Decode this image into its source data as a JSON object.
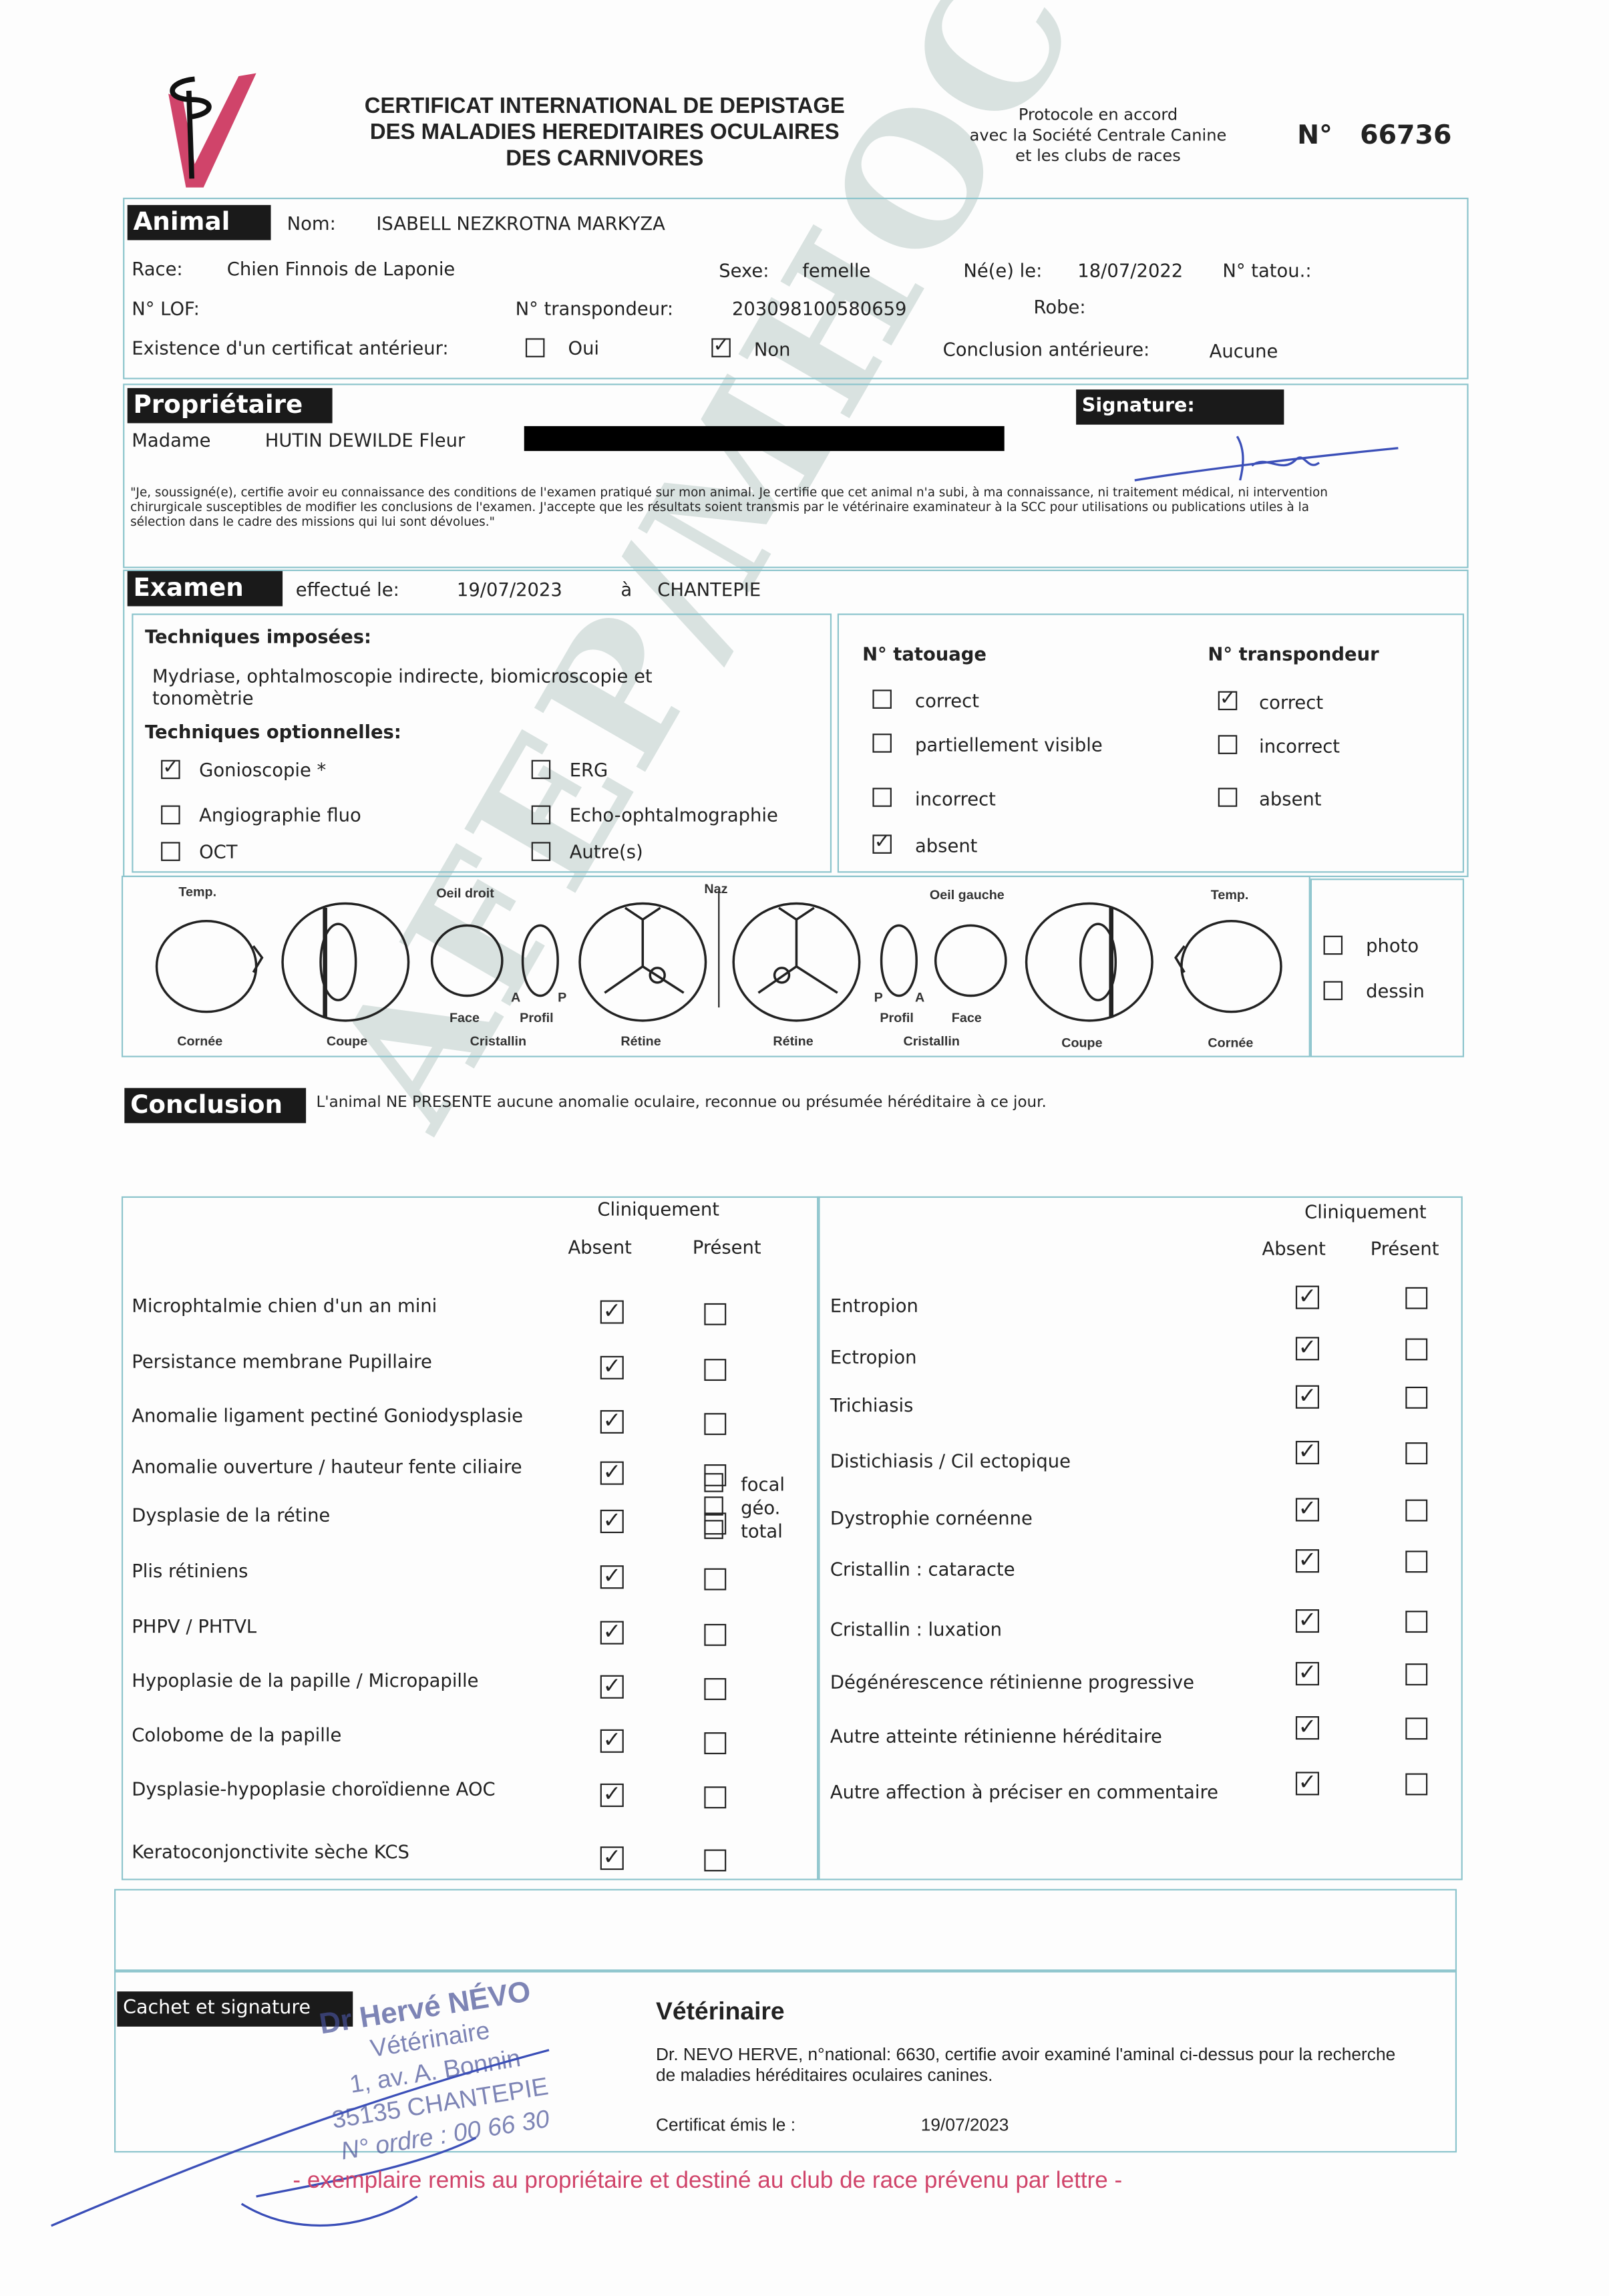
{
  "header": {
    "title_lines": [
      "CERTIFICAT INTERNATIONAL DE DEPISTAGE",
      "DES MALADIES HEREDITAIRES OCULAIRES",
      "DES CARNIVORES"
    ],
    "protocol_lines": [
      "Protocole en accord",
      "avec la Société Centrale Canine",
      "et les clubs de races"
    ],
    "number_label": "N°",
    "number": "66736",
    "watermark": "AFEP/MHOC",
    "brand_color": "#d0446a"
  },
  "animal": {
    "header": "Animal",
    "nom_label": "Nom:",
    "nom": "ISABELL NEZKROTNA MARKYZA",
    "race_label": "Race:",
    "race": "Chien Finnois de Laponie",
    "sexe_label": "Sexe:",
    "sexe": "femelle",
    "ne_label": "Né(e) le:",
    "ne": "18/07/2022",
    "tatou_label": "N° tatou.:",
    "lof_label": "N° LOF:",
    "transpondeur_label": "N° transpondeur:",
    "transpondeur": "203098100580659",
    "robe_label": "Robe:",
    "cert_ant_label": "Existence d'un certificat antérieur:",
    "oui": "Oui",
    "oui_checked": false,
    "non": "Non",
    "non_checked": true,
    "conclusion_ant_label": "Conclusion antérieure:",
    "conclusion_ant": "Aucune"
  },
  "proprietaire": {
    "header": "Propriétaire",
    "civilite": "Madame",
    "nom": "HUTIN DEWILDE Fleur",
    "signature_header": "Signature:",
    "declaration": "\"Je, soussigné(e), certifie avoir eu connaissance des conditions de l'examen pratiqué sur mon animal. Je certifie que cet animal n'a subi, à ma connaissance, ni traitement médical, ni intervention chirurgicale susceptibles de modifier les conclusions de l'examen. J'accepte que les résultats soient transmis par le vétérinaire examinateur à la SCC pour utilisations ou publications utiles à la sélection dans le cadre des missions qui lui sont dévolues.\""
  },
  "examen": {
    "header": "Examen",
    "effectue_label": "effectué le:",
    "date": "19/07/2023",
    "a": "à",
    "lieu": "CHANTEPIE",
    "imposees_title": "Techniques imposées:",
    "imposees": "Mydriase, ophtalmoscopie indirecte, biomicroscopie et tonomètrie",
    "optionnelles_title": "Techniques optionnelles:",
    "optionnelles": [
      {
        "label": "Gonioscopie *",
        "checked": true
      },
      {
        "label": "ERG",
        "checked": false
      },
      {
        "label": "Angiographie fluo",
        "checked": false
      },
      {
        "label": "Echo-ophtalmographie",
        "checked": false
      },
      {
        "label": "OCT",
        "checked": false
      },
      {
        "label": "Autre(s)",
        "checked": false
      }
    ],
    "tatouage_title": "N° tatouage",
    "tatouage": [
      {
        "label": "correct",
        "checked": false
      },
      {
        "label": "partiellement visible",
        "checked": false
      },
      {
        "label": "incorrect",
        "checked": false
      },
      {
        "label": "absent",
        "checked": true
      }
    ],
    "transpondeur_title": "N° transpondeur",
    "transpondeur": [
      {
        "label": "correct",
        "checked": true
      },
      {
        "label": "incorrect",
        "checked": false
      },
      {
        "label": "absent",
        "checked": false
      }
    ]
  },
  "diagram": {
    "temp": "Temp.",
    "oeil_droit": "Oeil droit",
    "naz": "Naz",
    "oeil_gauche": "Oeil gauche",
    "cornee": "Cornée",
    "coupe": "Coupe",
    "cristallin": "Cristallin",
    "retine": "Rétine",
    "face": "Face",
    "profil": "Profil",
    "A": "A",
    "P": "P",
    "photo": "photo",
    "photo_checked": false,
    "dessin": "dessin",
    "dessin_checked": false
  },
  "conclusion": {
    "header": "Conclusion",
    "text": "L'animal NE PRESENTE aucune anomalie oculaire, reconnue ou présumée héréditaire à ce jour."
  },
  "table": {
    "cliniquement": "Cliniquement",
    "absent": "Absent",
    "present": "Présent",
    "focal": "focal",
    "geo": "géo.",
    "total": "total",
    "left": [
      {
        "label": "Microphtalmie chien d'un an mini",
        "absent": true,
        "present": false
      },
      {
        "label": "Persistance membrane Pupillaire",
        "absent": true,
        "present": false
      },
      {
        "label": "Anomalie ligament pectiné Goniodysplasie",
        "absent": true,
        "present": false
      },
      {
        "label": "Anomalie ouverture / hauteur fente ciliaire",
        "absent": true,
        "present": false
      },
      {
        "label": "Dysplasie de la rétine",
        "absent": true,
        "present": false
      },
      {
        "label": "Plis rétiniens",
        "absent": true,
        "present": false
      },
      {
        "label": "PHPV / PHTVL",
        "absent": true,
        "present": false
      },
      {
        "label": "Hypoplasie de la papille / Micropapille",
        "absent": true,
        "present": false
      },
      {
        "label": "Colobome de la papille",
        "absent": true,
        "present": false
      },
      {
        "label": "Dysplasie-hypoplasie choroïdienne AOC",
        "absent": true,
        "present": false
      },
      {
        "label": "Keratoconjonctivite sèche KCS",
        "absent": true,
        "present": false
      }
    ],
    "right": [
      {
        "label": "Entropion",
        "absent": true,
        "present": false
      },
      {
        "label": "Ectropion",
        "absent": true,
        "present": false
      },
      {
        "label": "Trichiasis",
        "absent": true,
        "present": false
      },
      {
        "label": "Distichiasis / Cil ectopique",
        "absent": true,
        "present": false
      },
      {
        "label": "Dystrophie cornéenne",
        "absent": true,
        "present": false
      },
      {
        "label": "Cristallin : cataracte",
        "absent": true,
        "present": false
      },
      {
        "label": "Cristallin : luxation",
        "absent": true,
        "present": false
      },
      {
        "label": "Dégénérescence rétinienne progressive",
        "absent": true,
        "present": false
      },
      {
        "label": "Autre atteinte rétinienne héréditaire",
        "absent": true,
        "present": false
      },
      {
        "label": "Autre affection à préciser en commentaire",
        "absent": true,
        "present": false
      }
    ]
  },
  "veterinaire": {
    "cachet_header": "Cachet et signature",
    "stamp_lines": [
      "Dr Hervé NÉVO",
      "Vétérinaire",
      "1, av. A. Bonnin",
      "35135 CHANTEPIE",
      "N° ordre : 00 66 30"
    ],
    "title": "Vétérinaire",
    "statement": "Dr. NEVO HERVE, n°national: 6630, certifie avoir examiné l'aminal ci-dessus pour la recherche de maladies héréditaires oculaires canines.",
    "emis_label": "Certificat émis le :",
    "emis_date": "19/07/2023"
  },
  "footer": {
    "text": "- exemplaire remis au propriétaire et destiné au club de race prévenu par lettre -",
    "color": "#d0446a"
  }
}
